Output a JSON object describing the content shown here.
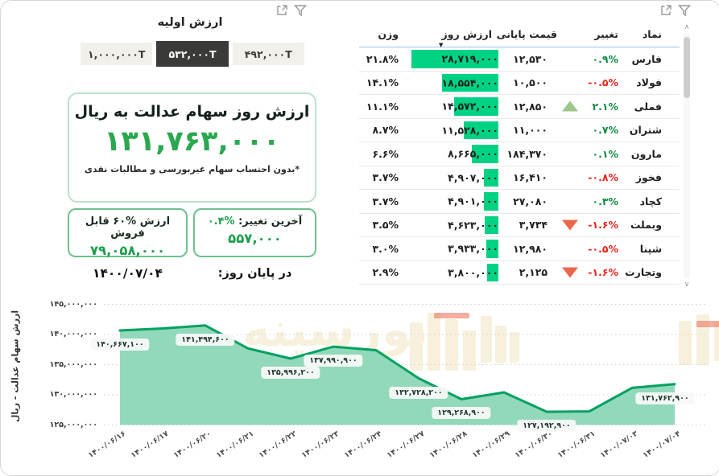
{
  "colors": {
    "accent_green": "#2aa84f",
    "value_green": "#1d9e4e",
    "bar_green": "#00d284",
    "line_green": "#00a160",
    "area_green": "#92d8ba",
    "pos_green": "#128a45",
    "neg_red": "#e8241d",
    "arrow_up": "#9cc68c",
    "arrow_down": "#e8684a",
    "tab_active_bg": "#3a3a38",
    "header_underline": "#9cc3e5",
    "watermark_cream": "#f7f0dc",
    "watermark_red": "#eb6a52"
  },
  "icons": {
    "filter": "funnel-icon",
    "focus_mode": "focus-mode-expand-icon"
  },
  "left_panel": {
    "tabs_title": "ارزش اولیه",
    "tabs": [
      {
        "label": "۱,۰۰۰,۰۰۰T",
        "active": false
      },
      {
        "label": "۵۳۲,۰۰۰T",
        "active": true
      },
      {
        "label": "۴۹۲,۰۰۰T",
        "active": false
      }
    ],
    "main_card": {
      "title": "ارزش روز سهام عدالت به ریال",
      "value": "۱۳۱,۷۶۳,۰۰۰",
      "footnote": "*بدون احتساب سهام غیربورسی و مطالبات نقدی"
    },
    "change_box": {
      "label": "آخرین تغییر:",
      "pct": "۰.۴%",
      "value": "۵۵۷,۰۰۰"
    },
    "sellable_box": {
      "label_prefix": "ارزش",
      "label_pct": "۶۰%",
      "label_suffix": "قابل فروش",
      "value": "۷۹,۰۵۸,۰۰۰"
    },
    "end_of_day_label": "در پایان روز:",
    "date": "۱۴۰۰/۰۷/۰۴"
  },
  "table": {
    "columns": {
      "symbol": "نماد",
      "change": "تغییر",
      "price": "قیمت پایانی",
      "value": "ارزش روز",
      "weight": "وزن"
    },
    "sort_icon": "▼",
    "max_value_num": 28719000,
    "rows": [
      {
        "symbol": "فارس",
        "change": "۰.۹%",
        "positive": true,
        "arrow": null,
        "price": "۱۲,۵۳۰",
        "value": "۲۸,۷۱۹,۰۰۰",
        "value_num": 28719000,
        "weight": "۲۱.۸%"
      },
      {
        "symbol": "فولاد",
        "change": "-۰.۵%",
        "positive": false,
        "arrow": null,
        "price": "۱۰,۵۰۰",
        "value": "۱۸,۵۵۴,۰۰۰",
        "value_num": 18554000,
        "weight": "۱۴.۱%"
      },
      {
        "symbol": "فملی",
        "change": "۲.۱%",
        "positive": true,
        "arrow": "up",
        "price": "۱۲,۸۵۰",
        "value": "۱۴,۵۷۲,۰۰۰",
        "value_num": 14572000,
        "weight": "۱۱.۱%"
      },
      {
        "symbol": "شتران",
        "change": "۰.۷%",
        "positive": true,
        "arrow": null,
        "price": "۱۱,۰۰۰",
        "value": "۱۱,۵۲۸,۰۰۰",
        "value_num": 11528000,
        "weight": "۸.۷%"
      },
      {
        "symbol": "مارون",
        "change": "۰.۱%",
        "positive": true,
        "arrow": null,
        "price": "۱۸۴,۳۷۰",
        "value": "۸,۶۶۵,۰۰۰",
        "value_num": 8665000,
        "weight": "۶.۶%"
      },
      {
        "symbol": "فخوز",
        "change": "-۰.۸%",
        "positive": false,
        "arrow": null,
        "price": "۱۶,۴۱۰",
        "value": "۴,۹۰۷,۰۰۰",
        "value_num": 4907000,
        "weight": "۳.۷%"
      },
      {
        "symbol": "کچاد",
        "change": "۰.۳%",
        "positive": true,
        "arrow": null,
        "price": "۲۷,۰۸۰",
        "value": "۴,۹۰۱,۰۰۰",
        "value_num": 4901000,
        "weight": "۳.۷%"
      },
      {
        "symbol": "وبملت",
        "change": "-۱.۶%",
        "positive": false,
        "arrow": "down",
        "price": "۳,۷۳۴",
        "value": "۴,۶۲۳,۰۰۰",
        "value_num": 4623000,
        "weight": "۳.۵%"
      },
      {
        "symbol": "شپنا",
        "change": "-۰.۵%",
        "positive": false,
        "arrow": null,
        "price": "۱۲,۹۸۰",
        "value": "۳,۹۳۳,۰۰۰",
        "value_num": 3933000,
        "weight": "۳.۰%"
      },
      {
        "symbol": "وتجارت",
        "change": "-۱.۶%",
        "positive": false,
        "arrow": "down",
        "price": "۲,۱۲۵",
        "value": "۳,۸۰۰,۰۰۰",
        "value_num": 3800000,
        "weight": "۲.۹%"
      }
    ]
  },
  "scrollbar": {
    "up": "∧",
    "down": "∨"
  },
  "chart_data": {
    "type": "area",
    "title": "",
    "xlabel": "",
    "ylabel": "ارزش سهام عدالت - ریال",
    "x": [
      "۱۴۰۰/۰۶/۱۶",
      "۱۴۰۰/۰۶/۱۷",
      "۱۴۰۰/۰۶/۲۰",
      "۱۴۰۰/۰۶/۲۱",
      "۱۴۰۰/۰۶/۲۲",
      "۱۴۰۰/۰۶/۲۳",
      "۱۴۰۰/۰۶/۲۴",
      "۱۴۰۰/۰۶/۲۷",
      "۱۴۰۰/۰۶/۲۸",
      "۱۴۰۰/۰۶/۲۹",
      "۱۴۰۰/۰۶/۳۰",
      "۱۴۰۰/۰۶/۳۱",
      "۱۴۰۰/۰۷/۰۳",
      "۱۴۰۰/۰۷/۰۴"
    ],
    "values": [
      140667100,
      141000000,
      141494600,
      137700000,
      135996200,
      137990900,
      137400000,
      132728200,
      129268900,
      130400000,
      127192900,
      127250000,
      131150000,
      131762900
    ],
    "point_labels": [
      "۱۴۰,۶۶۷,۱۰۰",
      null,
      "۱۴۱,۴۹۴,۶۰۰",
      null,
      "۱۳۵,۹۹۶,۲۰۰",
      "۱۳۷,۹۹۰,۹۰۰",
      null,
      "۱۳۲,۷۲۸,۲۰۰",
      "۱۲۹,۲۶۸,۹۰۰",
      null,
      "۱۲۷,۱۹۲,۹۰۰",
      null,
      null,
      "۱۳۱,۷۶۲,۹۰۰"
    ],
    "estimated_indices": [
      1,
      3,
      6,
      9,
      11,
      12
    ],
    "ylim": [
      125000000,
      145000000
    ],
    "ytick_values": [
      145000000,
      140000000,
      135000000,
      130000000,
      125000000
    ],
    "ytick_labels": [
      "۱۴۵,۰۰۰,۰۰۰",
      "۱۴۰,۰۰۰,۰۰۰",
      "۱۳۵,۰۰۰,۰۰۰",
      "۱۳۰,۰۰۰,۰۰۰",
      "۱۲۵,۰۰۰,۰۰۰"
    ],
    "grid": "dotted-horizontal",
    "legend": "none"
  }
}
